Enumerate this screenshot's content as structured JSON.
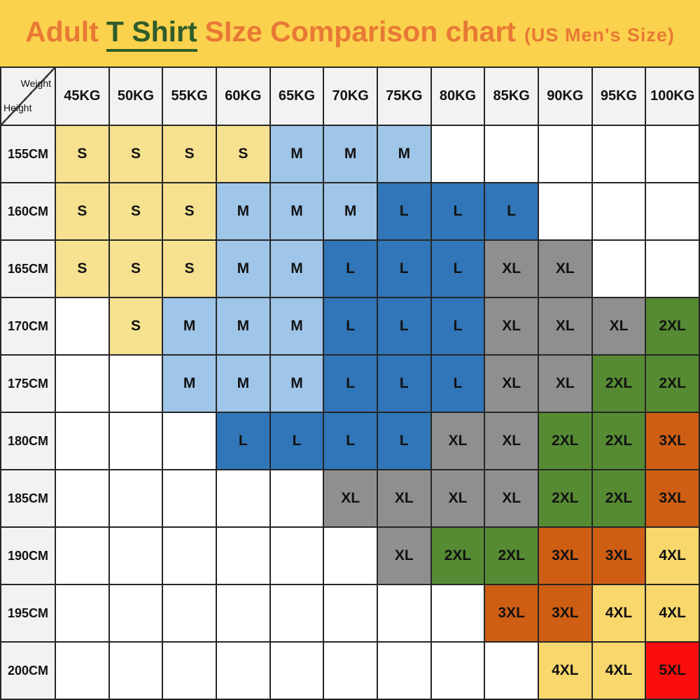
{
  "title": {
    "prefix": "Adult",
    "highlight": "T Shirt",
    "suffix": "SIze Comparison chart",
    "subtitle": "(US Men's Size)",
    "bg_color": "#FBD24D",
    "orange_color": "#E87935",
    "green_color": "#2E5C2A"
  },
  "table": {
    "corner": {
      "top_right": "Weight",
      "bottom_left": "Height"
    },
    "header_bg": "#F2F2F2",
    "grid_line_color": "#262626"
  },
  "chart_data": {
    "type": "heatmap",
    "title": "Adult T Shirt SIze Comparison chart (US Men's Size)",
    "xlabel": "Weight",
    "ylabel": "Height",
    "grid": true,
    "legend_position": "none",
    "x_categories": [
      "45KG",
      "50KG",
      "55KG",
      "60KG",
      "65KG",
      "70KG",
      "75KG",
      "80KG",
      "85KG",
      "90KG",
      "95KG",
      "100KG"
    ],
    "y_categories": [
      "155CM",
      "160CM",
      "165CM",
      "170CM",
      "175CM",
      "180CM",
      "185CM",
      "190CM",
      "195CM",
      "200CM"
    ],
    "values": [
      [
        "S",
        "S",
        "S",
        "S",
        "M",
        "M",
        "M",
        "",
        "",
        "",
        "",
        ""
      ],
      [
        "S",
        "S",
        "S",
        "M",
        "M",
        "M",
        "L",
        "L",
        "L",
        "",
        "",
        ""
      ],
      [
        "S",
        "S",
        "S",
        "M",
        "M",
        "L",
        "L",
        "L",
        "XL",
        "XL",
        "",
        ""
      ],
      [
        "",
        "S",
        "M",
        "M",
        "M",
        "L",
        "L",
        "L",
        "XL",
        "XL",
        "XL",
        "2XL"
      ],
      [
        "",
        "",
        "M",
        "M",
        "M",
        "L",
        "L",
        "L",
        "XL",
        "XL",
        "2XL",
        "2XL"
      ],
      [
        "",
        "",
        "",
        "L",
        "L",
        "L",
        "L",
        "XL",
        "XL",
        "2XL",
        "2XL",
        "3XL"
      ],
      [
        "",
        "",
        "",
        "",
        "",
        "XL",
        "XL",
        "XL",
        "XL",
        "2XL",
        "2XL",
        "3XL"
      ],
      [
        "",
        "",
        "",
        "",
        "",
        "",
        "XL",
        "2XL",
        "2XL",
        "3XL",
        "3XL",
        "4XL"
      ],
      [
        "",
        "",
        "",
        "",
        "",
        "",
        "",
        "",
        "3XL",
        "3XL",
        "4XL",
        "4XL"
      ],
      [
        "",
        "",
        "",
        "",
        "",
        "",
        "",
        "",
        "",
        "4XL",
        "4XL",
        "5XL"
      ]
    ],
    "cell_colors": {
      "S": "#F6E190",
      "M": "#9FC5E8",
      "L": "#3076B8",
      "XL": "#8F8F8F",
      "2XL": "#568B33",
      "3XL": "#CE5E14",
      "4XL": "#F8D76C",
      "5XL": "#FB0D0D",
      "empty": "#FFFFFF"
    }
  }
}
